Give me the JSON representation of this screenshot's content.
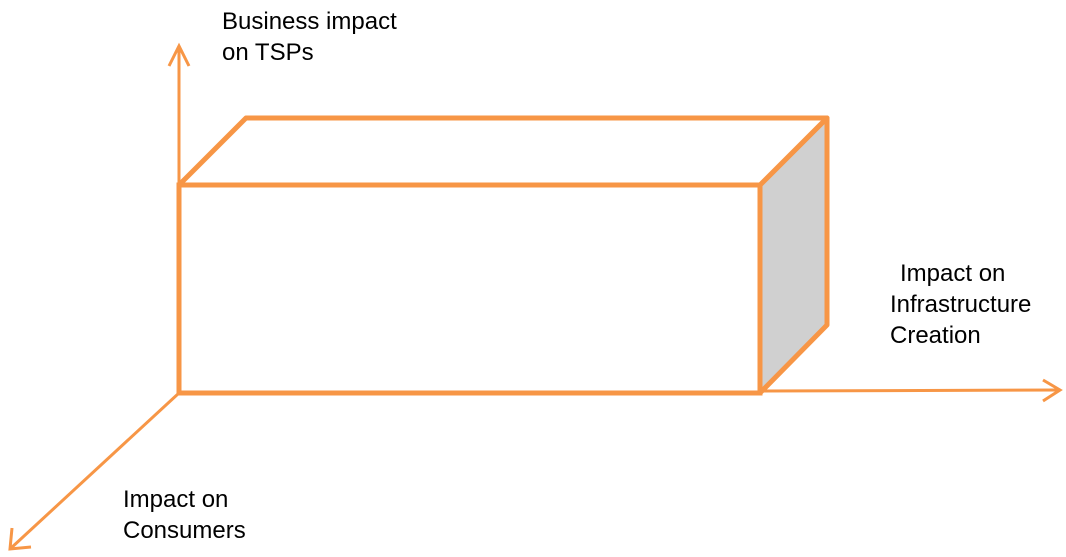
{
  "diagram": {
    "stroke_color": "#F79646",
    "side_face_color": "#D0D0D0",
    "background": "#FFFFFF",
    "axes": {
      "y": {
        "lines": [
          "Business impact",
          "on TSPs"
        ]
      },
      "x": {
        "lines": [
          "Impact on",
          "Infrastructure",
          "Creation"
        ]
      },
      "z": {
        "lines": [
          "Impact on",
          "Consumers"
        ]
      }
    },
    "box": {
      "shape": "3D rectangular prism",
      "side_face": "shaded"
    }
  }
}
